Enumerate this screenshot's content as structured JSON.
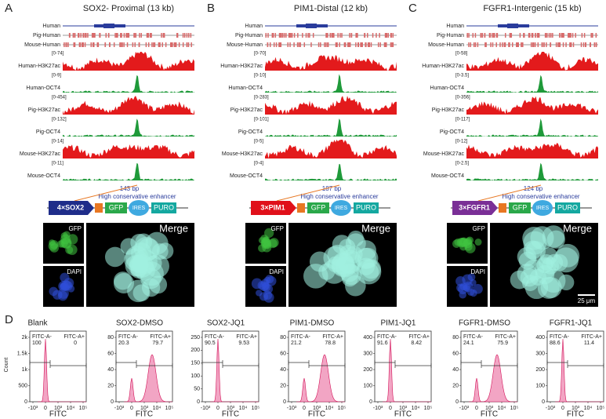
{
  "panels": [
    {
      "letter": "A",
      "title": "SOX2- Proximal (13 kb)",
      "genome_tracks": [
        "Human",
        "Pig-Human",
        "Mouse-Human"
      ],
      "signal_tracks": [
        {
          "name": "Human-H3K27ac",
          "scale": "[0-74]"
        },
        {
          "name": "Human-OCT4",
          "scale": "[0-9]"
        },
        {
          "name": "Pig-H3K27ac",
          "scale": "[0-454]"
        },
        {
          "name": "Pig-OCT4",
          "scale": "[0-132]"
        },
        {
          "name": "Mouse-H3K27ac",
          "scale": "[0-14]"
        },
        {
          "name": "Mouse-OCT4",
          "scale": "[0-11]"
        }
      ],
      "length": "143 bp",
      "enhancer": "High conservative enhancer",
      "construct": [
        "4×SOX2",
        "GFP",
        "IRES",
        "PURO"
      ],
      "images": [
        "GFP",
        "DAPI",
        "Merge"
      ]
    },
    {
      "letter": "B",
      "title": "PIM1-Distal (12 kb)",
      "genome_tracks": [
        "Human",
        "Pig-Human",
        "Mouse-Human"
      ],
      "signal_tracks": [
        {
          "name": "Human-H3K27ac",
          "scale": "[0-70]"
        },
        {
          "name": "Human-OCT4",
          "scale": "[0-10]"
        },
        {
          "name": "Pig-H3K27ac",
          "scale": "[0-283]"
        },
        {
          "name": "Pig-OCT4",
          "scale": "[0-101]"
        },
        {
          "name": "Mouse-H3K27ac",
          "scale": "[0-5]"
        },
        {
          "name": "Mouse-OCT4",
          "scale": "[0-4]"
        }
      ],
      "length": "187 bp",
      "enhancer": "High conservative enhancer",
      "construct": [
        "3×PIM1",
        "GFP",
        "IRES",
        "PURO"
      ],
      "images": [
        "GFP",
        "DAPI",
        "Merge"
      ]
    },
    {
      "letter": "C",
      "title": "FGFR1-Intergenic (15 kb)",
      "genome_tracks": [
        "Human",
        "Pig-Human",
        "Mouse-Human"
      ],
      "signal_tracks": [
        {
          "name": "Human-H3K27ac",
          "scale": "[0-58]"
        },
        {
          "name": "Human-OCT4",
          "scale": "[0-3.5]"
        },
        {
          "name": "Pig-H3K27ac",
          "scale": "[0-356]"
        },
        {
          "name": "Pig-OCT4",
          "scale": "[0-117]"
        },
        {
          "name": "Mouse-H3K27ac",
          "scale": "[0-12]"
        },
        {
          "name": "Mouse-OCT4",
          "scale": "[0-2.5]"
        }
      ],
      "length": "124 bp",
      "enhancer": "High conservative enhancer",
      "construct": [
        "3×FGFR1",
        "GFP",
        "IRES",
        "PURO"
      ],
      "images": [
        "GFP",
        "DAPI",
        "Merge"
      ],
      "scale_bar": "25 μm"
    }
  ],
  "flow": {
    "letter": "D",
    "x_label": "FITC",
    "y_label": "Count",
    "neg_label": "FITC-A-",
    "pos_label": "FITC-A+",
    "xticks": [
      "-10³",
      "0",
      "10³",
      "10⁴",
      "10⁵"
    ],
    "plots": [
      {
        "title": "Blank",
        "neg": "100",
        "pos": "0",
        "yticks": [
          "2k",
          "1.5k",
          "1k",
          "500",
          "0"
        ]
      },
      {
        "title": "SOX2-DMSO",
        "neg": "20.3",
        "pos": "79.7",
        "yticks": [
          "80",
          "60",
          "40",
          "20",
          "0"
        ]
      },
      {
        "title": "SOX2-JQ1",
        "neg": "90.5",
        "pos": "9.53",
        "yticks": [
          "250",
          "200",
          "150",
          "100",
          "50",
          "0"
        ]
      },
      {
        "title": "PIM1-DMSO",
        "neg": "21.2",
        "pos": "78.8",
        "yticks": [
          "80",
          "60",
          "40",
          "20",
          "0"
        ]
      },
      {
        "title": "PIM1-JQ1",
        "neg": "91.6",
        "pos": "8.42",
        "yticks": [
          "400",
          "300",
          "200",
          "100",
          "0"
        ]
      },
      {
        "title": "FGFR1-DMSO",
        "neg": "24.1",
        "pos": "75.9",
        "yticks": [
          "80",
          "60",
          "40",
          "20",
          "0"
        ]
      },
      {
        "title": "FGFR1-JQ1",
        "neg": "88.6",
        "pos": "11.4",
        "yticks": [
          "400",
          "300",
          "200",
          "100",
          "0"
        ]
      }
    ]
  }
}
